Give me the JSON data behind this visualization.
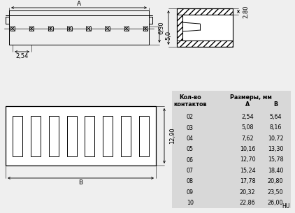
{
  "bg_color": "#efefef",
  "white": "#ffffff",
  "black": "#000000",
  "table_bg": "#d8d8d8",
  "title": "HU",
  "table_header1": "Кол-во",
  "table_header2": "контактов",
  "table_header3": "Размеры, мм",
  "table_col_a": "A",
  "table_col_b": "B",
  "rows": [
    [
      "02",
      "2,54",
      "5,64"
    ],
    [
      "03",
      "5,08",
      "8,16"
    ],
    [
      "04",
      "7,62",
      "10,72"
    ],
    [
      "05",
      "10,16",
      "13,30"
    ],
    [
      "06",
      "12,70",
      "15,78"
    ],
    [
      "07",
      "15,24",
      "18,40"
    ],
    [
      "08",
      "17,78",
      "20,80"
    ],
    [
      "09",
      "20,32",
      "23,50"
    ],
    [
      "10",
      "22,86",
      "26,00"
    ]
  ],
  "dim_A": "A",
  "dim_B": "B",
  "dim_254": "2,54",
  "dim_50": "5,0",
  "dim_630": "6,30",
  "dim_280": "2,80",
  "dim_1290": "12,90",
  "n_pins": 8
}
